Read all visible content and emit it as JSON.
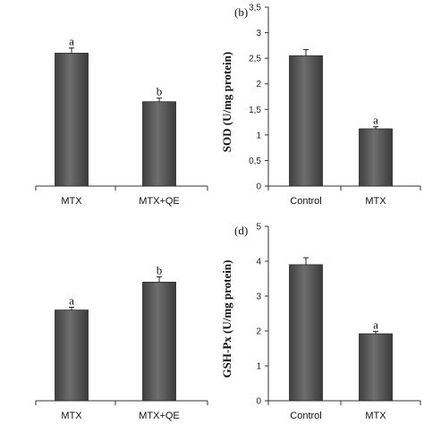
{
  "chart_data": [
    {
      "panel": "",
      "type": "bar",
      "categories": [
        "MTX",
        "MTX+QE"
      ],
      "values": [
        2.6,
        1.65
      ],
      "errors": [
        0.1,
        0.07
      ],
      "sig_letters": [
        "a",
        "b"
      ],
      "ylim": [
        0,
        3.5
      ],
      "ylabel": "",
      "yticks": [],
      "y_axis_shown": false
    },
    {
      "panel": "(b)",
      "type": "bar",
      "categories": [
        "Control",
        "MTX"
      ],
      "values": [
        2.55,
        1.12
      ],
      "errors": [
        0.12,
        0.04
      ],
      "sig_letters": [
        "",
        "a"
      ],
      "ylim": [
        0,
        3.5
      ],
      "ylabel": "SOD  (U/mg protein)",
      "yticks": [
        "0",
        "0,5",
        "1",
        "1,5",
        "2",
        "2,5",
        "3",
        "3,5"
      ],
      "y_axis_shown": true
    },
    {
      "panel": "",
      "type": "bar",
      "categories": [
        "MTX",
        "MTX+QE"
      ],
      "values": [
        2.6,
        3.4
      ],
      "errors": [
        0.08,
        0.15
      ],
      "sig_letters": [
        "a",
        "b"
      ],
      "ylim": [
        0,
        5
      ],
      "ylabel": "",
      "yticks": [],
      "y_axis_shown": false
    },
    {
      "panel": "(d)",
      "type": "bar",
      "categories": [
        "Control",
        "MTX"
      ],
      "values": [
        3.9,
        1.92
      ],
      "errors": [
        0.2,
        0.07
      ],
      "sig_letters": [
        "",
        "a"
      ],
      "ylim": [
        0,
        5
      ],
      "ylabel": "GSH-Px (U/mg  protein)",
      "yticks": [
        "0",
        "1",
        "2",
        "3",
        "4",
        "5"
      ],
      "y_axis_shown": true
    }
  ]
}
